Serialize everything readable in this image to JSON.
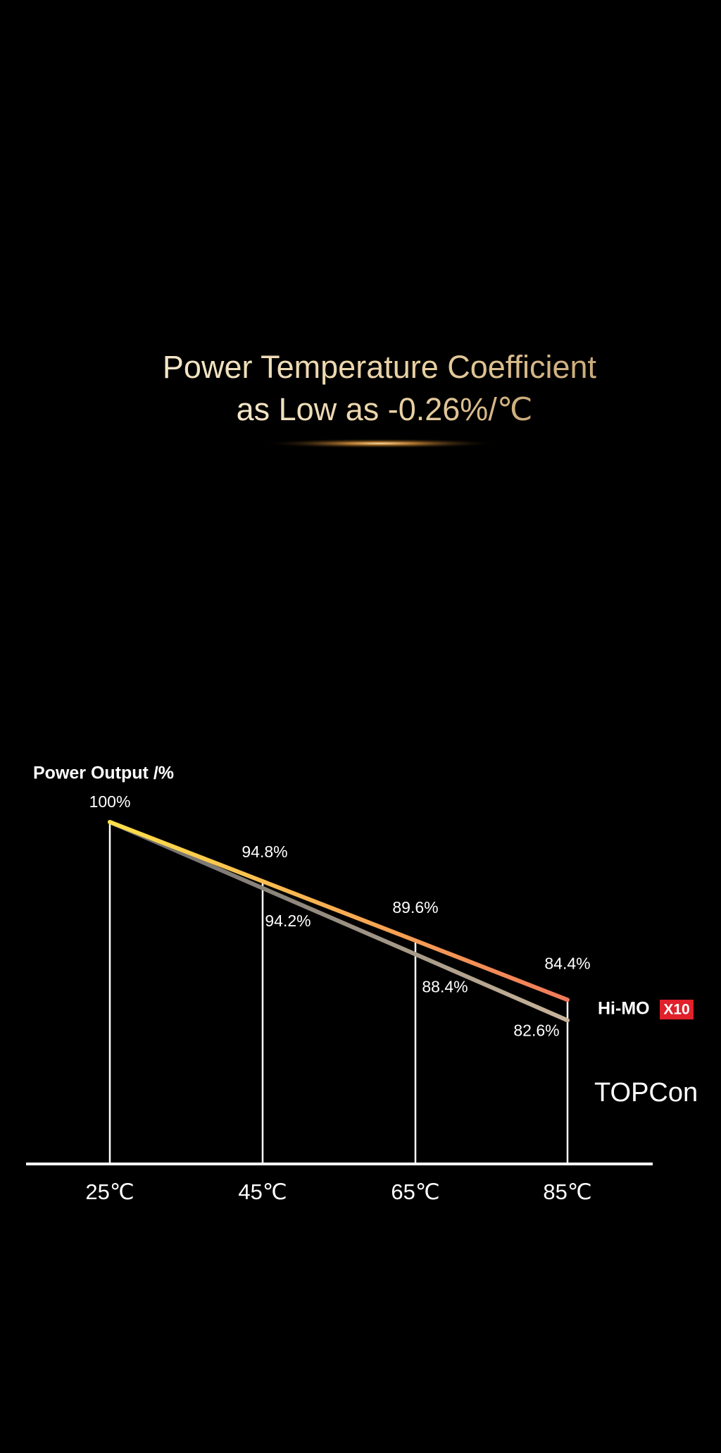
{
  "chart_data": {
    "type": "line",
    "title": [
      "Power Temperature Coefficient",
      "as Low as -0.26%/℃"
    ],
    "y_label": "Power Output /%",
    "categories": [
      "25℃",
      "45℃",
      "65℃",
      "85℃"
    ],
    "ylim": [
      70,
      100
    ],
    "series": [
      {
        "name": "Hi-MO",
        "badge": "X10",
        "colors": [
          "#ffe04a",
          "#f07a5a"
        ],
        "values": [
          100,
          94.8,
          89.6,
          84.4
        ],
        "value_labels": [
          "100%",
          "94.8%",
          "89.6%",
          "84.4%"
        ]
      },
      {
        "name": "TOPCon",
        "colors": [
          "#6a6a6a",
          "#c8b49a"
        ],
        "values": [
          100,
          94.2,
          88.4,
          82.6
        ],
        "value_labels": [
          null,
          "94.2%",
          "88.4%",
          "82.6%"
        ]
      }
    ]
  }
}
